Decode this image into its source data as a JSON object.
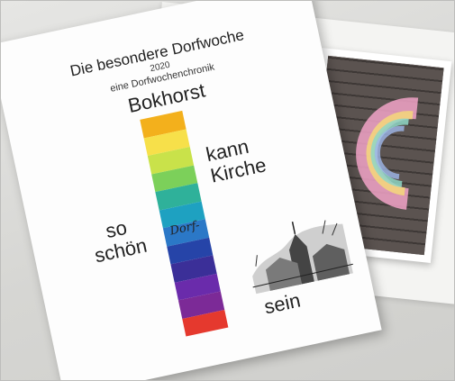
{
  "booklet": {
    "title": "Die besondere Dorfwoche",
    "year": "2020",
    "subtitle": "eine Dorfwochenchronik",
    "place": "Bokhorst",
    "left_text_1": "so",
    "left_text_2": "schön",
    "right_text_1": "kann",
    "right_text_2": "Kirche",
    "script_text": "Dorf-",
    "bottom_text": "sein",
    "rainbow_colors": [
      "#f3b01c",
      "#f7e04a",
      "#c9e24a",
      "#7cd05a",
      "#2fb19a",
      "#1ea1c1",
      "#2b78c7",
      "#2644a8",
      "#3b2f98",
      "#6a2bab",
      "#7c2a97",
      "#e5392e"
    ]
  },
  "photo": {
    "icon": "chalk-letter-c-on-cobblestones"
  }
}
